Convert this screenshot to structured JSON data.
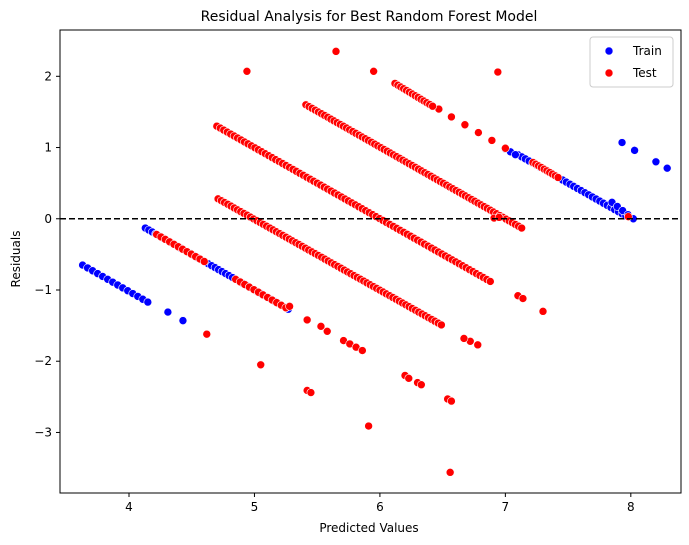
{
  "chart_data": {
    "type": "scatter",
    "title": "Residual Analysis for Best Random Forest Model",
    "xlabel": "Predicted Values",
    "ylabel": "Residuals",
    "xlim": [
      3.45,
      8.4
    ],
    "ylim": [
      -3.85,
      2.65
    ],
    "xticks": [
      4,
      5,
      6,
      7,
      8
    ],
    "yticks": [
      -3,
      -2,
      -1,
      0,
      1,
      2
    ],
    "grid": false,
    "legend_position": "top-right",
    "reference_line": {
      "y": 0,
      "style": "dashed",
      "color": "#000000"
    },
    "colors": {
      "Train": "#0000ff",
      "Test": "#ff0000"
    },
    "series": [
      {
        "name": "Train",
        "color": "#0000ff",
        "diagonals": [
          {
            "x_start": 3.63,
            "y_start": -0.65,
            "x_end": 4.15,
            "y_end": -1.17,
            "count": 14
          },
          {
            "x_start": 4.13,
            "y_start": -0.13,
            "x_end": 5.27,
            "y_end": -1.27,
            "count": 42
          },
          {
            "x_start": 7.1,
            "y_start": 0.9,
            "x_end": 7.96,
            "y_end": 0.04,
            "count": 30
          },
          {
            "x_start": 7.0,
            "y_start": 0.98,
            "x_end": 7.08,
            "y_end": 0.9,
            "count": 3
          },
          {
            "x_start": 7.85,
            "y_start": 0.23,
            "x_end": 8.02,
            "y_end": 0.0,
            "count": 5
          }
        ],
        "points": [
          {
            "x": 4.31,
            "y": -1.31
          },
          {
            "x": 4.43,
            "y": -1.43
          },
          {
            "x": 7.93,
            "y": 1.07
          },
          {
            "x": 8.03,
            "y": 0.96
          },
          {
            "x": 8.2,
            "y": 0.8
          },
          {
            "x": 8.29,
            "y": 0.71
          }
        ]
      },
      {
        "name": "Test",
        "color": "#ff0000",
        "diagonals": [
          {
            "x_start": 4.22,
            "y_start": -0.22,
            "x_end": 4.6,
            "y_end": -0.6,
            "count": 12
          },
          {
            "x_start": 4.85,
            "y_start": -0.85,
            "x_end": 5.25,
            "y_end": -1.25,
            "count": 12
          },
          {
            "x_start": 4.7,
            "y_start": 1.3,
            "x_end": 6.88,
            "y_end": -0.88,
            "count": 80
          },
          {
            "x_start": 4.71,
            "y_start": 0.28,
            "x_end": 6.49,
            "y_end": -1.49,
            "count": 70
          },
          {
            "x_start": 5.41,
            "y_start": 1.6,
            "x_end": 7.13,
            "y_end": -0.13,
            "count": 70
          },
          {
            "x_start": 5.95,
            "y_start": 2.07,
            "x_end": 6.47,
            "y_end": 1.54,
            "count": 4
          },
          {
            "x_start": 6.12,
            "y_start": 1.9,
            "x_end": 6.42,
            "y_end": 1.58,
            "count": 14
          },
          {
            "x_start": 6.57,
            "y_start": 1.43,
            "x_end": 7.0,
            "y_end": 0.99,
            "count": 5
          },
          {
            "x_start": 7.22,
            "y_start": 0.79,
            "x_end": 7.42,
            "y_end": 0.58,
            "count": 10
          },
          {
            "x_start": 7.1,
            "y_start": -1.08,
            "x_end": 7.14,
            "y_end": -1.12,
            "count": 2
          },
          {
            "x_start": 5.53,
            "y_start": -1.51,
            "x_end": 5.58,
            "y_end": -1.58,
            "count": 2
          },
          {
            "x_start": 5.71,
            "y_start": -1.71,
            "x_end": 5.86,
            "y_end": -1.85,
            "count": 4
          },
          {
            "x_start": 6.72,
            "y_start": -1.72,
            "x_end": 6.78,
            "y_end": -1.77,
            "count": 2
          },
          {
            "x_start": 6.2,
            "y_start": -2.2,
            "x_end": 6.23,
            "y_end": -2.24,
            "count": 2
          },
          {
            "x_start": 6.3,
            "y_start": -2.3,
            "x_end": 6.33,
            "y_end": -2.33,
            "count": 2
          },
          {
            "x_start": 5.42,
            "y_start": -2.41,
            "x_end": 5.45,
            "y_end": -2.44,
            "count": 2
          },
          {
            "x_start": 6.54,
            "y_start": -2.53,
            "x_end": 6.57,
            "y_end": -2.56,
            "count": 2
          }
        ],
        "points": [
          {
            "x": 4.94,
            "y": 2.07
          },
          {
            "x": 5.65,
            "y": 2.35
          },
          {
            "x": 6.94,
            "y": 2.06
          },
          {
            "x": 4.62,
            "y": -1.62
          },
          {
            "x": 5.05,
            "y": -2.05
          },
          {
            "x": 5.42,
            "y": -1.42
          },
          {
            "x": 5.91,
            "y": -2.91
          },
          {
            "x": 6.56,
            "y": -3.56
          },
          {
            "x": 6.67,
            "y": -1.68
          },
          {
            "x": 7.3,
            "y": -1.3
          },
          {
            "x": 7.98,
            "y": 0.03
          },
          {
            "x": 6.91,
            "y": 0.01
          },
          {
            "x": 6.95,
            "y": 0.02
          },
          {
            "x": 5.28,
            "y": -1.23
          }
        ]
      }
    ]
  }
}
